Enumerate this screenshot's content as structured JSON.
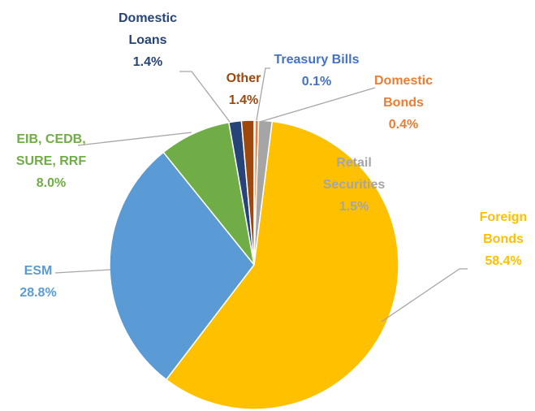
{
  "chart_data": {
    "type": "pie",
    "categories": [
      "Treasury Bills",
      "Domestic Bonds",
      "Retail Securities",
      "Foreign Bonds",
      "ESM",
      "EIB, CEDB, SURE, RRF",
      "Domestic Loans",
      "Other"
    ],
    "values": [
      0.1,
      0.4,
      1.5,
      58.4,
      28.8,
      8.0,
      1.4,
      1.4
    ],
    "value_labels": [
      "0.1%",
      "0.4%",
      "1.5%",
      "58.4%",
      "28.8%",
      "8.0%",
      "1.4%",
      "1.4%"
    ],
    "colors": [
      "#4472c4",
      "#ed7d31",
      "#a5a5a5",
      "#ffc000",
      "#5b9bd5",
      "#70ad47",
      "#264478",
      "#9e480e"
    ]
  }
}
